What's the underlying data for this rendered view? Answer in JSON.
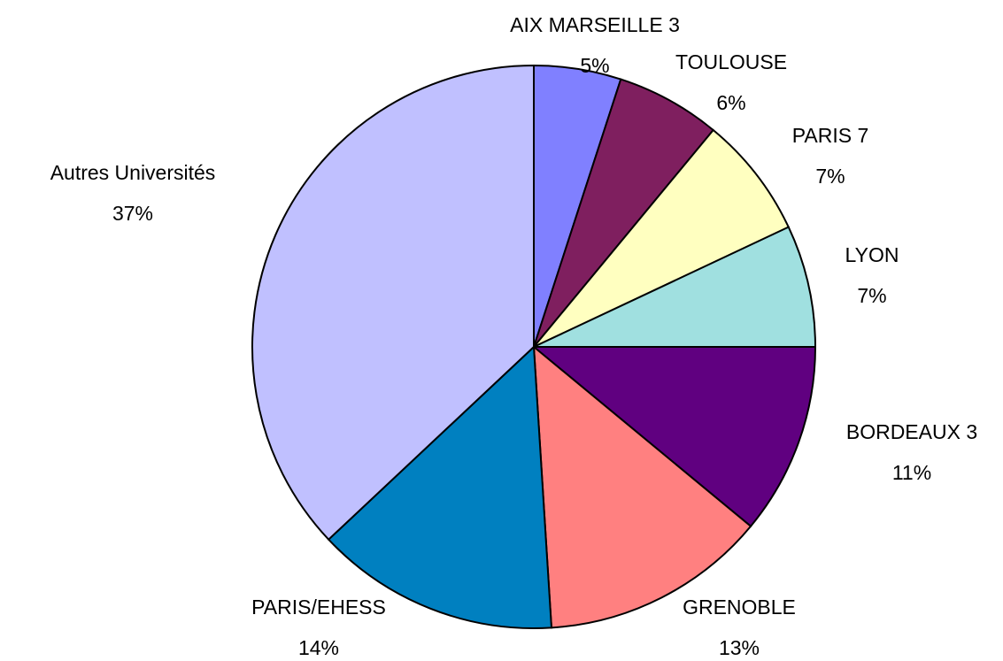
{
  "chart_data": {
    "type": "pie",
    "categories": [
      "AIX MARSEILLE 3",
      "TOULOUSE",
      "PARIS 7",
      "LYON",
      "BORDEAUX 3",
      "GRENOBLE",
      "PARIS/EHESS",
      "Autres Universités"
    ],
    "values": [
      5,
      6,
      7,
      7,
      11,
      13,
      14,
      37
    ],
    "value_labels": [
      "5%",
      "6%",
      "7%",
      "7%",
      "11%",
      "13%",
      "14%",
      "37%"
    ],
    "colors": [
      "#8080ff",
      "#7f1f5f",
      "#ffffc0",
      "#a0e0e0",
      "#600080",
      "#ff8080",
      "#0080c0",
      "#c0c0ff"
    ]
  }
}
